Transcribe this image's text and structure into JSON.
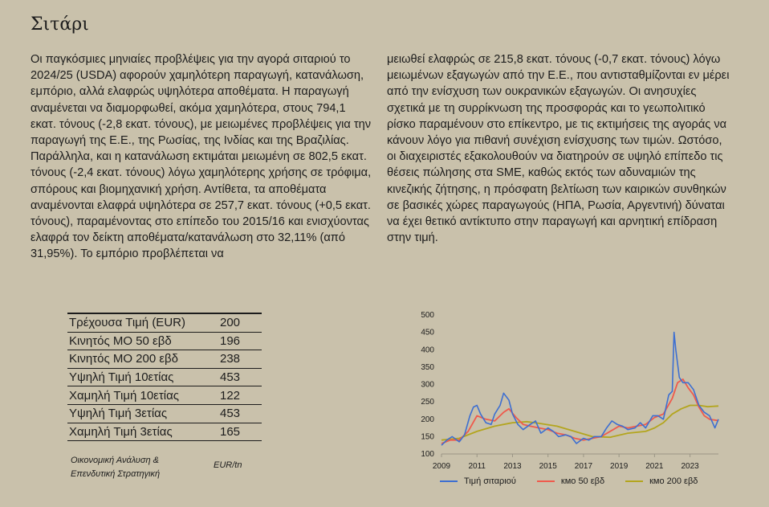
{
  "page": {
    "title": "Σιτάρι",
    "column1": "Οι παγκόσμιες μηνιαίες προβλέψεις για την αγορά σιταριού το 2024/25 (USDA) αφορούν χαμηλότερη παραγωγή, κατανάλωση, εμπόριο, αλλά ελαφρώς υψηλότερα αποθέματα. Η παραγωγή αναμένεται να διαμορφωθεί, ακόμα χαμηλότερα, στους 794,1 εκατ. τόνους (-2,8 εκατ. τόνους), με μειωμένες προβλέψεις για την παραγωγή της Ε.Ε., της Ρωσίας, της Ινδίας και της Βραζιλίας. Παράλληλα, και η κατανάλωση εκτιμάται μειωμένη σε 802,5 εκατ. τόνους (-2,4 εκατ. τόνους) λόγω χαμηλότερης χρήσης σε τρόφιμα, σπόρους και βιομηχανική χρήση. Αντίθετα, τα αποθέματα αναμένονται ελαφρά υψηλότερα σε 257,7 εκατ. τόνους (+0,5 εκατ. τόνους), παραμένοντας στο επίπεδο του 2015/16 και ενισχύοντας ελαφρά τον δείκτη αποθέματα/κατανάλωση στο 32,11% (από 31,95%). Το εμπόριο προβλέπεται να",
    "column2": "μειωθεί ελαφρώς σε 215,8 εκατ. τόνους (-0,7 εκατ. τόνους) λόγω μειωμένων εξαγωγών από την Ε.Ε., που αντισταθμίζονται εν μέρει από την ενίσχυση των ουκρανικών εξαγωγών. Οι ανησυχίες σχετικά με τη συρρίκνωση της προσφοράς και το γεωπολιτικό ρίσκο παραμένουν στο επίκεντρο, με τις εκτιμήσεις της αγοράς να κάνουν λόγο για πιθανή συνέχιση ενίσχυσης των τιμών. Ωστόσο, οι διαχειριστές εξακολουθούν να διατηρούν σε υψηλό επίπεδο τις θέσεις πώλησης στα SME, καθώς εκτός των αδυναμιών της κινεζικής ζήτησης, η πρόσφατη βελτίωση των καιρικών συνθηκών σε βασικές χώρες παραγωγούς (ΗΠΑ, Ρωσία, Αργεντινή) δύναται να έχει θετικό αντίκτυπο στην παραγωγή και αρνητική επίδραση στην τιμή."
  },
  "stats": {
    "rows": [
      {
        "label": "Τρέχουσα Τιμή (EUR)",
        "value": "200"
      },
      {
        "label": "Κινητός ΜΟ 50 εβδ",
        "value": "196"
      },
      {
        "label": "Κινητός ΜΟ 200 εβδ",
        "value": "238"
      },
      {
        "label": "Υψηλή Τιμή 10ετίας",
        "value": "453"
      },
      {
        "label": "Χαμηλή Τιμή 10ετίας",
        "value": "122"
      },
      {
        "label": "Υψηλή Τιμή 3ετίας",
        "value": "453"
      },
      {
        "label": "Χαμηλή Τιμή 3ετίας",
        "value": "165"
      }
    ],
    "source_line1": "Οικονομική Ανάλυση &",
    "source_line2": "Επενδυτική Στρατηγική",
    "unit": "EUR/tn"
  },
  "chart_data": {
    "type": "line",
    "title": "",
    "xlabel": "",
    "ylabel": "",
    "xlim": [
      2009,
      2024.6
    ],
    "ylim": [
      100,
      500
    ],
    "x_ticks": [
      "2009",
      "2011",
      "2013",
      "2015",
      "2017",
      "2019",
      "2021",
      "2023"
    ],
    "y_ticks": [
      "100",
      "150",
      "200",
      "250",
      "300",
      "350",
      "400",
      "450",
      "500"
    ],
    "grid": false,
    "legend_position": "bottom",
    "series": [
      {
        "name": "Τιμή σιταριού",
        "color": "#3d6fd1",
        "x": [
          2009.0,
          2009.3,
          2009.6,
          2010.0,
          2010.3,
          2010.6,
          2010.8,
          2011.0,
          2011.2,
          2011.5,
          2011.8,
          2012.0,
          2012.3,
          2012.5,
          2012.8,
          2013.0,
          2013.3,
          2013.6,
          2014.0,
          2014.3,
          2014.6,
          2015.0,
          2015.3,
          2015.6,
          2016.0,
          2016.3,
          2016.6,
          2017.0,
          2017.3,
          2017.6,
          2018.0,
          2018.3,
          2018.6,
          2018.9,
          2019.2,
          2019.5,
          2019.9,
          2020.2,
          2020.5,
          2020.9,
          2021.2,
          2021.5,
          2021.8,
          2022.0,
          2022.1,
          2022.2,
          2022.4,
          2022.6,
          2022.9,
          2023.2,
          2023.5,
          2023.8,
          2024.1,
          2024.4,
          2024.6
        ],
        "y": [
          125,
          140,
          150,
          135,
          155,
          210,
          235,
          240,
          215,
          190,
          185,
          215,
          240,
          275,
          255,
          215,
          185,
          170,
          185,
          195,
          160,
          175,
          165,
          150,
          155,
          150,
          130,
          145,
          140,
          150,
          150,
          175,
          195,
          185,
          180,
          170,
          175,
          190,
          175,
          210,
          210,
          200,
          270,
          280,
          450,
          400,
          320,
          305,
          305,
          285,
          240,
          220,
          210,
          175,
          200
        ]
      },
      {
        "name": "кмо 50 εβδ",
        "color": "#ef5a4c",
        "x": [
          2009.0,
          2009.5,
          2010.0,
          2010.5,
          2011.0,
          2011.5,
          2012.0,
          2012.5,
          2012.8,
          2013.2,
          2013.6,
          2014.0,
          2014.5,
          2015.0,
          2015.5,
          2016.0,
          2016.5,
          2017.0,
          2017.5,
          2018.0,
          2018.5,
          2019.0,
          2019.5,
          2020.0,
          2020.5,
          2021.0,
          2021.5,
          2022.0,
          2022.3,
          2022.6,
          2022.9,
          2023.2,
          2023.5,
          2023.8,
          2024.1,
          2024.6
        ],
        "y": [
          130,
          140,
          140,
          165,
          210,
          200,
          195,
          220,
          230,
          205,
          185,
          180,
          175,
          170,
          160,
          155,
          145,
          140,
          145,
          150,
          165,
          180,
          175,
          180,
          185,
          205,
          215,
          260,
          305,
          315,
          290,
          270,
          235,
          210,
          200,
          196
        ]
      },
      {
        "name": "кмо 200 εβδ",
        "color": "#b3a51e",
        "x": [
          2009.0,
          2010.0,
          2011.0,
          2012.0,
          2013.0,
          2013.8,
          2014.5,
          2015.5,
          2016.5,
          2017.5,
          2018.5,
          2019.5,
          2020.5,
          2021.0,
          2021.5,
          2022.0,
          2022.5,
          2023.0,
          2023.5,
          2024.0,
          2024.6
        ],
        "y": [
          140,
          145,
          165,
          180,
          190,
          193,
          188,
          180,
          165,
          150,
          148,
          160,
          165,
          175,
          190,
          215,
          230,
          240,
          240,
          236,
          238
        ]
      }
    ]
  }
}
